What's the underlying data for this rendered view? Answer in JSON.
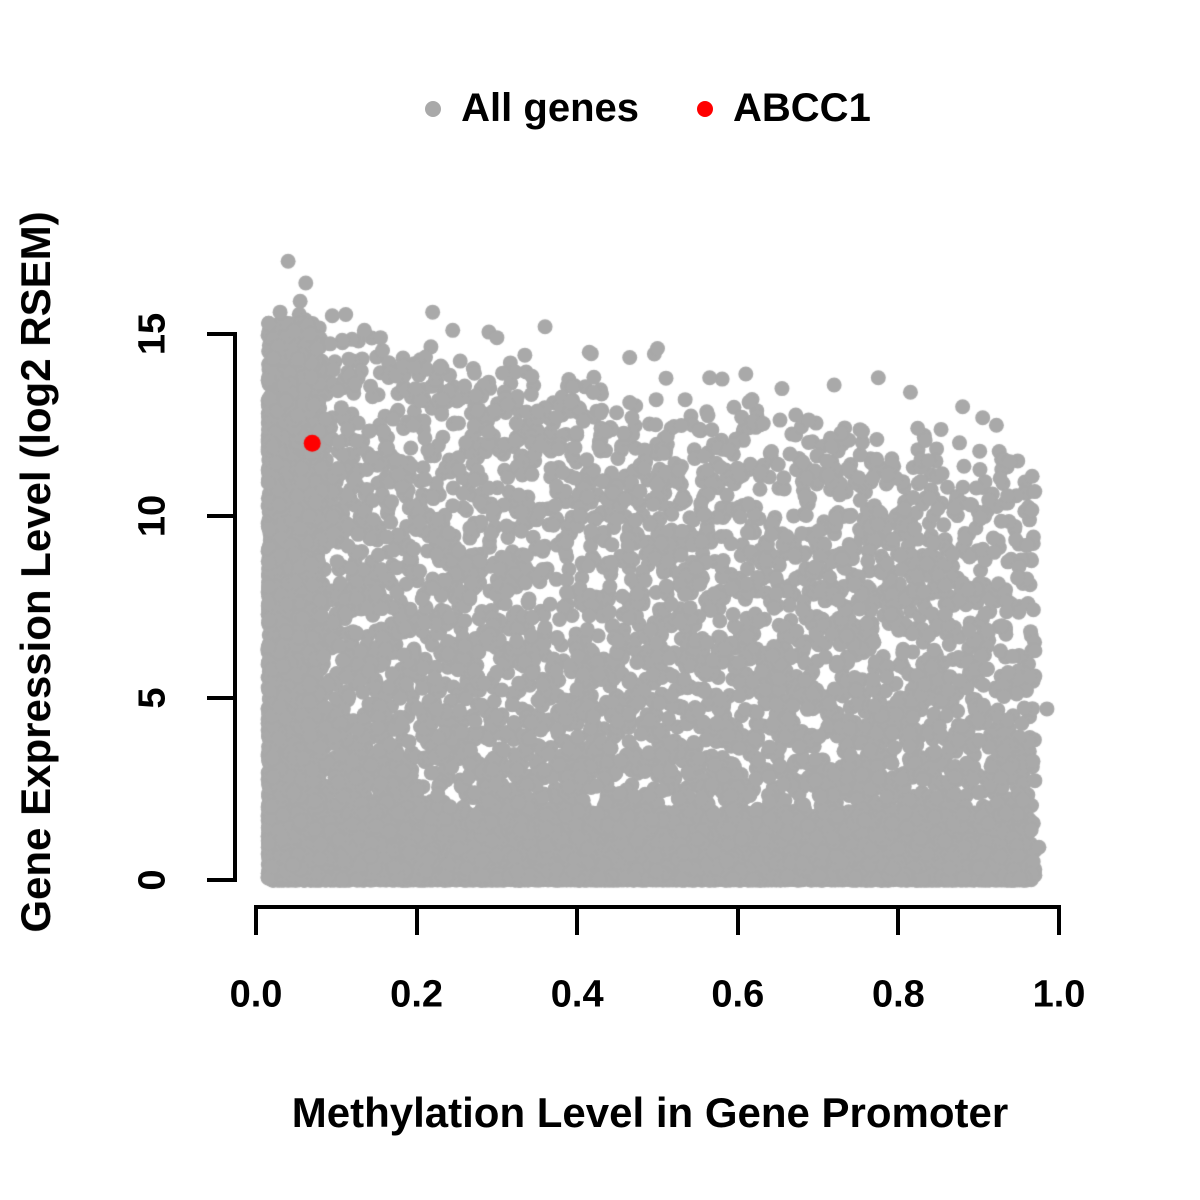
{
  "legend": {
    "items": [
      {
        "label": "All genes",
        "color": "#A9A9A9"
      },
      {
        "label": "ABCC1",
        "color": "#FF0000"
      }
    ]
  },
  "chart_data": {
    "type": "scatter",
    "title": "",
    "xlabel": "Methylation Level in Gene Promoter",
    "ylabel": "Gene Expression Level (log2 RSEM)",
    "xlim": [
      0,
      1
    ],
    "ylim": [
      0,
      15
    ],
    "grid": false,
    "legend_position": "top-center",
    "background_color": "#ffffff",
    "axis_color": "#000000",
    "x_ticks": [
      {
        "value": 0.0,
        "label": "0.0"
      },
      {
        "value": 0.2,
        "label": "0.2"
      },
      {
        "value": 0.4,
        "label": "0.4"
      },
      {
        "value": 0.6,
        "label": "0.6"
      },
      {
        "value": 0.8,
        "label": "0.8"
      },
      {
        "value": 1.0,
        "label": "1.0"
      }
    ],
    "y_ticks": [
      {
        "value": 0,
        "label": "0"
      },
      {
        "value": 5,
        "label": "5"
      },
      {
        "value": 10,
        "label": "10"
      },
      {
        "value": 15,
        "label": "15"
      }
    ],
    "series": [
      {
        "name": "All genes",
        "color": "#A9A9A9",
        "point_radius": 7.5,
        "representation": "procedural_cloud",
        "generator": {
          "seed": 1337,
          "n": 12500,
          "x_clamp": [
            0.008,
            0.972
          ],
          "components": [
            {
              "kind": "column",
              "weight": 0.22,
              "x_base": 0.015,
              "x_span": 0.065,
              "x_pow": 1.3,
              "y_max": 15.3,
              "y_pow": 1.0
            },
            {
              "kind": "bulk",
              "weight": 0.48,
              "x_base": 0.04,
              "x_span": 0.93,
              "x_pow": 1.15,
              "env_a": 15.3,
              "env_b": 4.3,
              "env_noise": 0.5,
              "y_pow": 1.6
            },
            {
              "kind": "column",
              "weight": 0.3,
              "x_base": 0.02,
              "x_span": 0.94,
              "x_pow": 1.05,
              "y_max": 1.9,
              "y_pow": 2.4
            }
          ]
        },
        "outlier_points": [
          [
            0.04,
            17.0
          ],
          [
            0.062,
            16.4
          ],
          [
            0.055,
            15.9
          ],
          [
            0.03,
            15.6
          ],
          [
            0.095,
            15.5
          ],
          [
            0.135,
            15.1
          ],
          [
            0.155,
            14.9
          ],
          [
            0.22,
            15.6
          ],
          [
            0.245,
            15.1
          ],
          [
            0.3,
            14.9
          ],
          [
            0.36,
            15.2
          ],
          [
            0.415,
            14.5
          ],
          [
            0.5,
            14.6
          ],
          [
            0.565,
            13.8
          ],
          [
            0.61,
            13.9
          ],
          [
            0.655,
            13.5
          ],
          [
            0.72,
            13.6
          ],
          [
            0.775,
            13.8
          ],
          [
            0.815,
            13.4
          ],
          [
            0.88,
            13.0
          ],
          [
            0.905,
            12.7
          ],
          [
            0.97,
            6.3
          ],
          [
            0.985,
            4.7
          ],
          [
            0.955,
            2.2
          ],
          [
            0.975,
            0.9
          ]
        ]
      },
      {
        "name": "ABCC1",
        "color": "#FF0000",
        "point_radius": 8.5,
        "points": [
          [
            0.07,
            12.0
          ]
        ]
      }
    ]
  }
}
